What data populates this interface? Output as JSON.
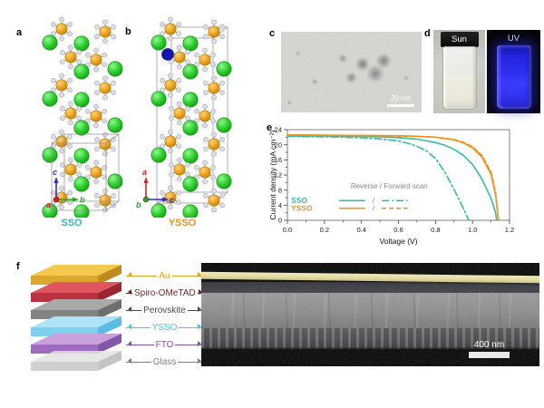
{
  "panels": {
    "a": "a",
    "b": "b",
    "c": "c",
    "d": "d",
    "e": "e",
    "f": "f"
  },
  "crystals": {
    "sso": {
      "title": "SSO",
      "title_color": "#35bcab",
      "axis_up": {
        "label": "c",
        "color": "#2b2bd8"
      },
      "axis_right": {
        "label": "b",
        "color": "#27a827"
      },
      "axis_out": {
        "label": "a",
        "color": "#c62828"
      }
    },
    "ysso": {
      "title": "YSSO",
      "title_color": "#f0921e",
      "axis_up": {
        "label": "a",
        "color": "#c62828"
      },
      "axis_right": {
        "label": "c",
        "color": "#2b2bd8"
      },
      "axis_out": {
        "label": "b",
        "color": "#27a827"
      }
    },
    "atoms": {
      "metal": "#eba31d",
      "alkaline": "#2ecc2e",
      "oxygen": "#dcdce6",
      "dopant": "#1717b0",
      "bond": "#c9a06a",
      "cell_edge": "#8c8c8c"
    }
  },
  "tem": {
    "scale_label": "20 nm"
  },
  "vials": {
    "left_label": "Sun",
    "right_label": "UV"
  },
  "chart_data": {
    "type": "line",
    "xlabel": "Voltage (V)",
    "ylabel": "Current density (mA cm⁻²)",
    "xlim": [
      0,
      1.2
    ],
    "ylim": [
      0,
      24
    ],
    "xticks": [
      0.0,
      0.2,
      0.4,
      0.6,
      0.8,
      1.0,
      1.2
    ],
    "yticks": [
      0,
      4,
      8,
      12,
      16,
      20,
      24
    ],
    "grid": false,
    "legend": {
      "header": "Reverse /  Forward scan",
      "position": "lower-left",
      "header_color": "#8a8a8a",
      "entries": [
        {
          "label": "SSO",
          "color": "#35bcab"
        },
        {
          "label": "YSSO",
          "color": "#f0921e"
        }
      ]
    },
    "series": [
      {
        "name": "SSO reverse",
        "color": "#35bcab",
        "style": "solid",
        "x": [
          0,
          0.1,
          0.2,
          0.3,
          0.4,
          0.5,
          0.6,
          0.7,
          0.8,
          0.85,
          0.9,
          0.95,
          1.0,
          1.05,
          1.1,
          1.125,
          1.13
        ],
        "y": [
          22.35,
          22.3,
          22.3,
          22.25,
          22.2,
          22.1,
          21.9,
          21.5,
          20.6,
          19.9,
          18.8,
          17.2,
          14.8,
          11.0,
          5.8,
          2.0,
          0
        ]
      },
      {
        "name": "SSO forward",
        "color": "#35bcab",
        "style": "dashdot",
        "x": [
          0,
          0.1,
          0.2,
          0.3,
          0.4,
          0.5,
          0.55,
          0.6,
          0.65,
          0.7,
          0.75,
          0.8,
          0.85,
          0.9,
          0.95,
          0.98
        ],
        "y": [
          22.2,
          22.15,
          22.1,
          22.0,
          21.85,
          21.55,
          21.3,
          21.0,
          20.4,
          19.6,
          18.4,
          16.4,
          12.8,
          8.2,
          3.2,
          0
        ]
      },
      {
        "name": "YSSO reverse",
        "color": "#f0921e",
        "style": "solid",
        "x": [
          0,
          0.1,
          0.2,
          0.3,
          0.4,
          0.5,
          0.6,
          0.7,
          0.8,
          0.9,
          0.95,
          1.0,
          1.05,
          1.1,
          1.125,
          1.14
        ],
        "y": [
          22.6,
          22.6,
          22.55,
          22.5,
          22.5,
          22.45,
          22.4,
          22.25,
          22.0,
          21.3,
          20.5,
          19.2,
          16.8,
          12.2,
          6.5,
          0
        ]
      },
      {
        "name": "YSSO forward",
        "color": "#f0921e",
        "style": "dashed",
        "x": [
          0,
          0.1,
          0.2,
          0.3,
          0.4,
          0.5,
          0.6,
          0.7,
          0.8,
          0.9,
          0.95,
          1.0,
          1.05,
          1.1,
          1.125,
          1.14
        ],
        "y": [
          22.5,
          22.5,
          22.45,
          22.4,
          22.4,
          22.35,
          22.3,
          22.2,
          22.0,
          21.4,
          20.7,
          19.5,
          17.2,
          12.8,
          7.2,
          0
        ]
      }
    ]
  },
  "device": {
    "layers": [
      {
        "name": "Au",
        "label_color": "#dfa21c",
        "top": "#f2c94c",
        "front": "#dca72f",
        "side": "#c08a1e"
      },
      {
        "name": "Spiro-OMeTAD",
        "label_color": "#8b1a1a",
        "top": "#e05560",
        "front": "#bb3140",
        "side": "#992633"
      },
      {
        "name": "Perovskite",
        "label_color": "#4a4a4a",
        "top": "#a9a9a9",
        "front": "#838383",
        "side": "#6e6e6e"
      },
      {
        "name": "YSSO",
        "label_color": "#45c8f0",
        "top": "#aee3f7",
        "front": "#7fd0ee",
        "side": "#5cbce2"
      },
      {
        "name": "FTO",
        "label_color": "#7b52a8",
        "top": "#c9a2dc",
        "front": "#9e6cbf",
        "side": "#8257a8"
      },
      {
        "name": "Glass",
        "label_color": "#808080",
        "top": "#e3e3e3",
        "front": "#c8c8c8",
        "side": "#bababa"
      }
    ],
    "sem_scale_label": "400 nm"
  }
}
